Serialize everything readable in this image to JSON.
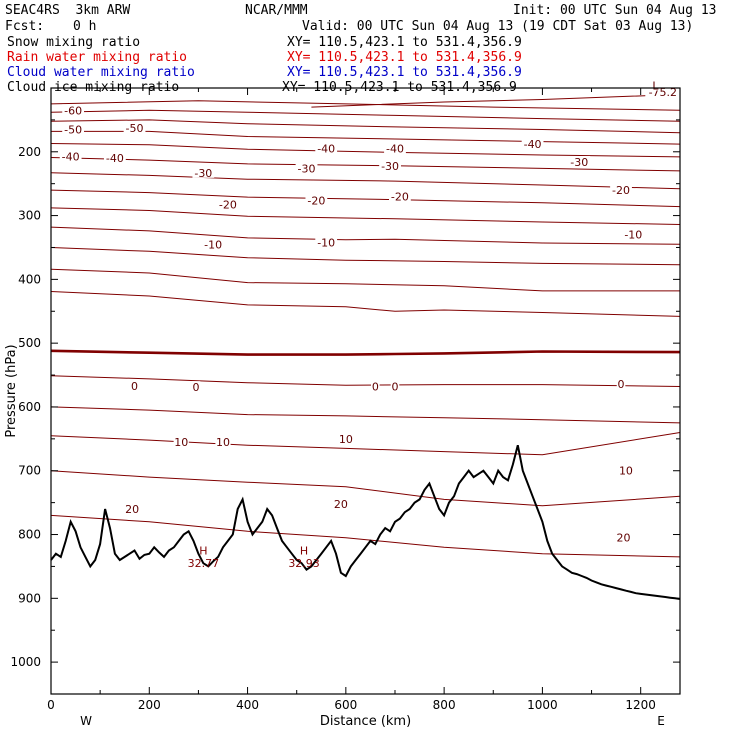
{
  "header": {
    "model": "SEAC4RS  3km ARW",
    "center": "NCAR/MMM",
    "init": "Init: 00 UTC Sun 04 Aug 13",
    "fcst_label": "Fcst:",
    "fcst_value": "0 h",
    "valid": "Valid: 00 UTC Sun 04 Aug 13 (19 CDT Sat 03 Aug 13)"
  },
  "fields": [
    {
      "name": "Snow mixing ratio",
      "xy": "XY= 110.5,423.1 to 531.4,356.9",
      "color": "#000000"
    },
    {
      "name": "Rain water mixing ratio",
      "xy": "XY= 110.5,423.1 to 531.4,356.9",
      "color": "#e00000"
    },
    {
      "name": "Cloud water mixing ratio",
      "xy": "XY= 110.5,423.1 to 531.4,356.9",
      "color": "#0000c8"
    },
    {
      "name": "Cloud ice mixing ratio",
      "xy": "XY= 110.5,423.1 to 531.4,356.9",
      "color": "#000000"
    }
  ],
  "chart_data": {
    "type": "contour",
    "xlabel": "Distance (km)",
    "ylabel": "Pressure (hPa)",
    "xlim": [
      0,
      1280
    ],
    "ylim": [
      1050,
      100
    ],
    "x_ticks": [
      0,
      200,
      400,
      600,
      800,
      1000,
      1200
    ],
    "y_ticks": [
      200,
      300,
      400,
      500,
      600,
      700,
      800,
      900,
      1000
    ],
    "y_tick_labels": [
      "200",
      "300",
      "400",
      "500",
      "600",
      "700",
      "800",
      "900",
      "1000"
    ],
    "x_end_labels": {
      "left": "W",
      "right": "E"
    },
    "contour_color": "#800000",
    "zero_line_color": "#800000",
    "terrain_color": "#000000",
    "contour_interval": 5,
    "isotherms": [
      {
        "level": -75,
        "points": [
          [
            530,
            130
          ],
          [
            800,
            122
          ],
          [
            1000,
            118
          ],
          [
            1280,
            110
          ]
        ]
      },
      {
        "level": -65,
        "points": [
          [
            0,
            125
          ],
          [
            300,
            120
          ],
          [
            600,
            125
          ],
          [
            900,
            130
          ],
          [
            1280,
            135
          ]
        ]
      },
      {
        "level": -60,
        "points": [
          [
            0,
            138
          ],
          [
            200,
            135
          ],
          [
            400,
            138
          ],
          [
            700,
            143
          ],
          [
            1000,
            148
          ],
          [
            1280,
            152
          ]
        ]
      },
      {
        "level": -55,
        "points": [
          [
            0,
            152
          ],
          [
            200,
            150
          ],
          [
            400,
            156
          ],
          [
            700,
            161
          ],
          [
            1000,
            165
          ],
          [
            1280,
            170
          ]
        ]
      },
      {
        "level": -50,
        "points": [
          [
            0,
            168
          ],
          [
            200,
            168
          ],
          [
            400,
            176
          ],
          [
            700,
            180
          ],
          [
            1000,
            184
          ],
          [
            1280,
            188
          ]
        ]
      },
      {
        "level": -45,
        "points": [
          [
            0,
            187
          ],
          [
            200,
            189
          ],
          [
            400,
            196
          ],
          [
            700,
            201
          ],
          [
            1000,
            205
          ],
          [
            1280,
            208
          ]
        ]
      },
      {
        "level": -40,
        "points": [
          [
            0,
            209
          ],
          [
            200,
            213
          ],
          [
            400,
            219
          ],
          [
            700,
            222
          ],
          [
            1000,
            226
          ],
          [
            1280,
            230
          ]
        ]
      },
      {
        "level": -35,
        "points": [
          [
            0,
            233
          ],
          [
            200,
            237
          ],
          [
            400,
            243
          ],
          [
            700,
            246
          ],
          [
            1000,
            252
          ],
          [
            1280,
            258
          ]
        ]
      },
      {
        "level": -30,
        "points": [
          [
            0,
            260
          ],
          [
            200,
            264
          ],
          [
            400,
            271
          ],
          [
            700,
            275
          ],
          [
            1000,
            280
          ],
          [
            1280,
            286
          ]
        ]
      },
      {
        "level": -25,
        "points": [
          [
            0,
            288
          ],
          [
            200,
            292
          ],
          [
            400,
            301
          ],
          [
            700,
            305
          ],
          [
            1000,
            310
          ],
          [
            1280,
            314
          ]
        ]
      },
      {
        "level": -20,
        "points": [
          [
            0,
            318
          ],
          [
            200,
            324
          ],
          [
            400,
            335
          ],
          [
            600,
            338
          ],
          [
            700,
            337
          ],
          [
            1000,
            343
          ],
          [
            1280,
            345
          ]
        ]
      },
      {
        "level": -15,
        "points": [
          [
            0,
            350
          ],
          [
            200,
            356
          ],
          [
            400,
            366
          ],
          [
            600,
            370
          ],
          [
            800,
            372
          ],
          [
            1000,
            375
          ],
          [
            1280,
            377
          ]
        ]
      },
      {
        "level": -10,
        "points": [
          [
            0,
            384
          ],
          [
            200,
            390
          ],
          [
            400,
            405
          ],
          [
            600,
            407
          ],
          [
            800,
            410
          ],
          [
            1000,
            418
          ],
          [
            1280,
            418
          ]
        ]
      },
      {
        "level": -5,
        "points": [
          [
            0,
            419
          ],
          [
            200,
            426
          ],
          [
            400,
            440
          ],
          [
            600,
            443
          ],
          [
            700,
            450
          ],
          [
            800,
            448
          ],
          [
            1000,
            452
          ],
          [
            1280,
            458
          ]
        ]
      },
      {
        "level": 0,
        "points": [
          [
            0,
            512
          ],
          [
            200,
            515
          ],
          [
            400,
            518
          ],
          [
            600,
            518
          ],
          [
            700,
            517
          ],
          [
            800,
            516
          ],
          [
            1000,
            513
          ],
          [
            1280,
            514
          ]
        ]
      },
      {
        "level": 5,
        "points": [
          [
            0,
            551
          ],
          [
            200,
            556
          ],
          [
            400,
            562
          ],
          [
            600,
            566
          ],
          [
            800,
            565
          ],
          [
            1000,
            565
          ],
          [
            1280,
            568
          ]
        ]
      },
      {
        "level": 10,
        "points": [
          [
            0,
            600
          ],
          [
            200,
            605
          ],
          [
            400,
            612
          ],
          [
            600,
            614
          ],
          [
            800,
            617
          ],
          [
            1000,
            620
          ],
          [
            1280,
            625
          ]
        ]
      },
      {
        "level": 15,
        "points": [
          [
            0,
            645
          ],
          [
            200,
            652
          ],
          [
            400,
            660
          ],
          [
            600,
            665
          ],
          [
            800,
            670
          ],
          [
            1000,
            675
          ],
          [
            1280,
            640
          ]
        ]
      },
      {
        "level": 20,
        "points": [
          [
            0,
            700
          ],
          [
            200,
            710
          ],
          [
            400,
            718
          ],
          [
            600,
            725
          ],
          [
            800,
            745
          ],
          [
            1000,
            755
          ],
          [
            1280,
            740
          ]
        ]
      },
      {
        "level": 25,
        "points": [
          [
            0,
            770
          ],
          [
            200,
            780
          ],
          [
            400,
            795
          ],
          [
            600,
            805
          ],
          [
            800,
            820
          ],
          [
            1000,
            830
          ],
          [
            1280,
            835
          ]
        ]
      }
    ],
    "terrain": [
      [
        0,
        840
      ],
      [
        10,
        830
      ],
      [
        20,
        835
      ],
      [
        30,
        810
      ],
      [
        40,
        780
      ],
      [
        50,
        795
      ],
      [
        60,
        820
      ],
      [
        70,
        835
      ],
      [
        80,
        850
      ],
      [
        90,
        840
      ],
      [
        100,
        815
      ],
      [
        110,
        760
      ],
      [
        120,
        790
      ],
      [
        130,
        830
      ],
      [
        140,
        840
      ],
      [
        150,
        835
      ],
      [
        160,
        830
      ],
      [
        170,
        825
      ],
      [
        180,
        838
      ],
      [
        190,
        832
      ],
      [
        200,
        830
      ],
      [
        210,
        820
      ],
      [
        220,
        828
      ],
      [
        230,
        835
      ],
      [
        240,
        825
      ],
      [
        250,
        820
      ],
      [
        260,
        810
      ],
      [
        270,
        800
      ],
      [
        280,
        795
      ],
      [
        290,
        810
      ],
      [
        300,
        830
      ],
      [
        310,
        845
      ],
      [
        320,
        850
      ],
      [
        330,
        842
      ],
      [
        340,
        835
      ],
      [
        350,
        820
      ],
      [
        360,
        810
      ],
      [
        370,
        800
      ],
      [
        380,
        760
      ],
      [
        390,
        745
      ],
      [
        400,
        780
      ],
      [
        410,
        800
      ],
      [
        420,
        790
      ],
      [
        430,
        780
      ],
      [
        440,
        760
      ],
      [
        450,
        770
      ],
      [
        460,
        790
      ],
      [
        470,
        810
      ],
      [
        480,
        820
      ],
      [
        490,
        830
      ],
      [
        500,
        840
      ],
      [
        510,
        845
      ],
      [
        520,
        855
      ],
      [
        530,
        850
      ],
      [
        540,
        840
      ],
      [
        550,
        830
      ],
      [
        560,
        820
      ],
      [
        570,
        810
      ],
      [
        580,
        830
      ],
      [
        590,
        860
      ],
      [
        600,
        865
      ],
      [
        610,
        850
      ],
      [
        620,
        840
      ],
      [
        630,
        830
      ],
      [
        640,
        820
      ],
      [
        650,
        810
      ],
      [
        660,
        815
      ],
      [
        670,
        800
      ],
      [
        680,
        790
      ],
      [
        690,
        795
      ],
      [
        700,
        780
      ],
      [
        710,
        775
      ],
      [
        720,
        765
      ],
      [
        730,
        760
      ],
      [
        740,
        750
      ],
      [
        750,
        745
      ],
      [
        760,
        730
      ],
      [
        770,
        720
      ],
      [
        780,
        740
      ],
      [
        790,
        760
      ],
      [
        800,
        770
      ],
      [
        810,
        750
      ],
      [
        820,
        740
      ],
      [
        830,
        720
      ],
      [
        840,
        710
      ],
      [
        850,
        700
      ],
      [
        860,
        710
      ],
      [
        870,
        705
      ],
      [
        880,
        700
      ],
      [
        890,
        710
      ],
      [
        900,
        720
      ],
      [
        910,
        700
      ],
      [
        920,
        710
      ],
      [
        930,
        715
      ],
      [
        940,
        690
      ],
      [
        950,
        660
      ],
      [
        960,
        700
      ],
      [
        970,
        720
      ],
      [
        980,
        740
      ],
      [
        990,
        760
      ],
      [
        1000,
        780
      ],
      [
        1010,
        810
      ],
      [
        1020,
        830
      ],
      [
        1030,
        840
      ],
      [
        1040,
        850
      ],
      [
        1050,
        855
      ],
      [
        1060,
        860
      ],
      [
        1070,
        862
      ],
      [
        1080,
        865
      ],
      [
        1090,
        868
      ],
      [
        1100,
        872
      ],
      [
        1110,
        875
      ],
      [
        1120,
        878
      ],
      [
        1130,
        880
      ],
      [
        1140,
        882
      ],
      [
        1150,
        884
      ],
      [
        1160,
        886
      ],
      [
        1170,
        888
      ],
      [
        1180,
        890
      ],
      [
        1190,
        892
      ],
      [
        1200,
        893
      ],
      [
        1210,
        894
      ],
      [
        1220,
        895
      ],
      [
        1230,
        896
      ],
      [
        1240,
        897
      ],
      [
        1250,
        898
      ],
      [
        1260,
        899
      ],
      [
        1270,
        900
      ],
      [
        1280,
        901
      ]
    ],
    "contour_labels": [
      {
        "text": "-75.2",
        "x": 1245,
        "p": 106
      },
      {
        "text": "L",
        "x": 1230,
        "p": 96
      },
      {
        "text": "-60",
        "x": 45,
        "p": 135
      },
      {
        "text": "-50",
        "x": 45,
        "p": 165
      },
      {
        "text": "-50",
        "x": 170,
        "p": 163
      },
      {
        "text": "-40",
        "x": 40,
        "p": 207
      },
      {
        "text": "-40",
        "x": 130,
        "p": 210
      },
      {
        "text": "-40",
        "x": 560,
        "p": 195
      },
      {
        "text": "-40",
        "x": 700,
        "p": 195
      },
      {
        "text": "-40",
        "x": 980,
        "p": 188
      },
      {
        "text": "-30",
        "x": 310,
        "p": 233
      },
      {
        "text": "-30",
        "x": 520,
        "p": 226
      },
      {
        "text": "-30",
        "x": 690,
        "p": 222
      },
      {
        "text": "-30",
        "x": 1075,
        "p": 216
      },
      {
        "text": "-20",
        "x": 360,
        "p": 283
      },
      {
        "text": "-20",
        "x": 540,
        "p": 276
      },
      {
        "text": "-20",
        "x": 710,
        "p": 270
      },
      {
        "text": "-20",
        "x": 1160,
        "p": 260
      },
      {
        "text": "-10",
        "x": 330,
        "p": 345
      },
      {
        "text": "-10",
        "x": 560,
        "p": 342
      },
      {
        "text": "-10",
        "x": 1185,
        "p": 330
      },
      {
        "text": "0",
        "x": 170,
        "p": 567
      },
      {
        "text": "0",
        "x": 295,
        "p": 569
      },
      {
        "text": "0",
        "x": 660,
        "p": 568
      },
      {
        "text": "0",
        "x": 700,
        "p": 568
      },
      {
        "text": "0",
        "x": 1160,
        "p": 564
      },
      {
        "text": "10",
        "x": 265,
        "p": 655
      },
      {
        "text": "10",
        "x": 350,
        "p": 655
      },
      {
        "text": "10",
        "x": 600,
        "p": 650
      },
      {
        "text": "10",
        "x": 1170,
        "p": 700
      },
      {
        "text": "20",
        "x": 165,
        "p": 760
      },
      {
        "text": "20",
        "x": 590,
        "p": 752
      },
      {
        "text": "20",
        "x": 1165,
        "p": 805
      }
    ],
    "extrema_labels": [
      {
        "text": "H",
        "x": 310,
        "p": 825
      },
      {
        "text": "32.77",
        "x": 310,
        "p": 845
      },
      {
        "text": "H",
        "x": 515,
        "p": 825
      },
      {
        "text": "32.93",
        "x": 515,
        "p": 845
      }
    ]
  }
}
